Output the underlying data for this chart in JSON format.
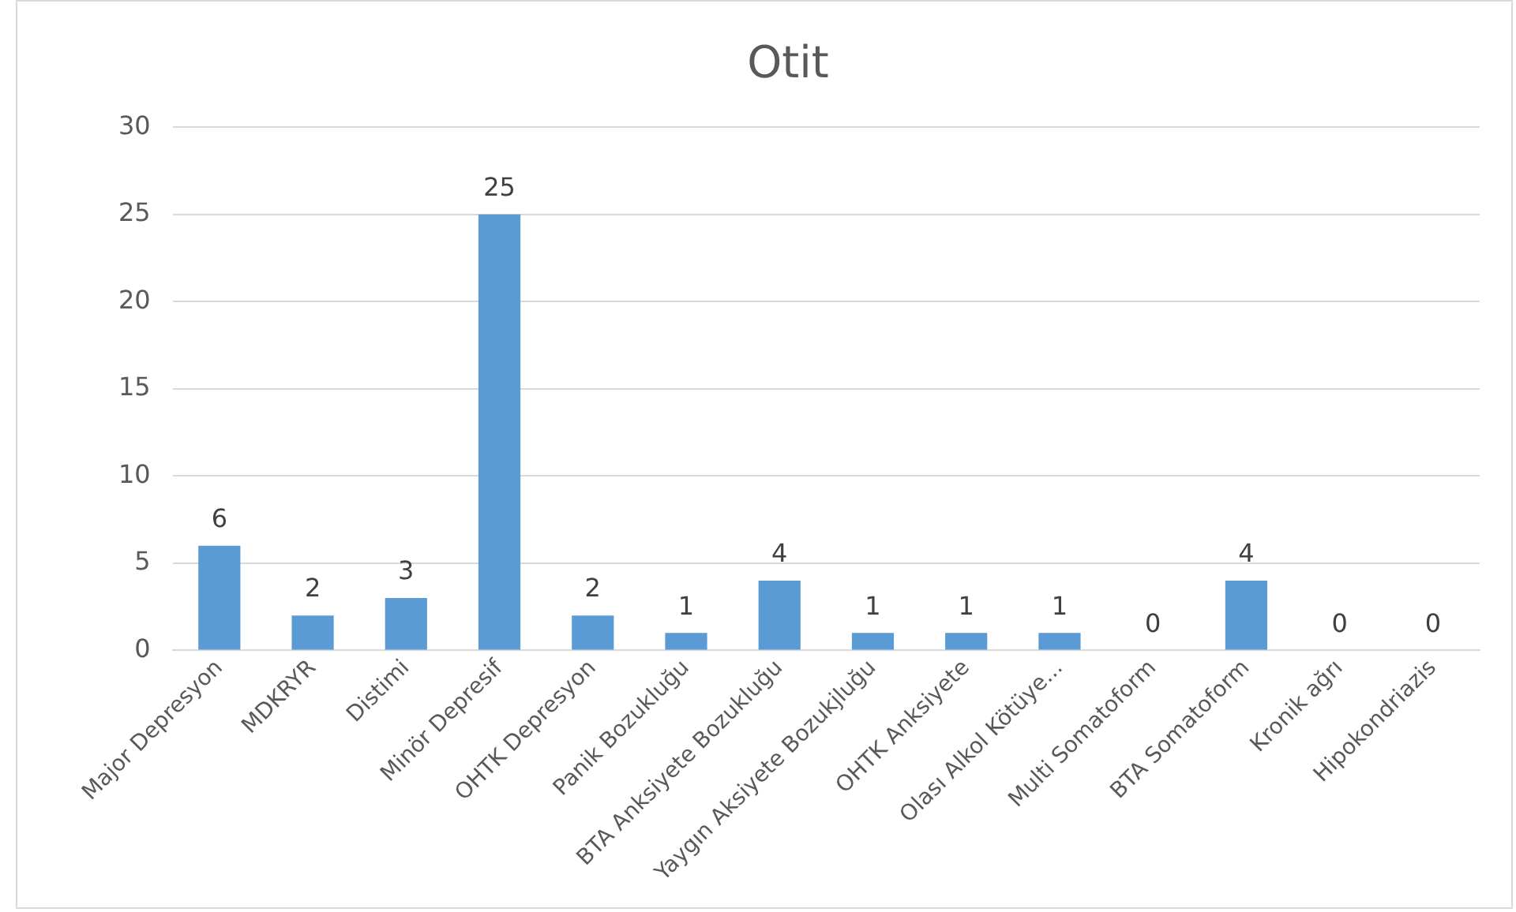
{
  "chart_data": {
    "type": "bar",
    "title": "Otit",
    "categories": [
      "Major Depresyon",
      "MDKRYR",
      "Distimi",
      "Minör Depresif",
      "OHTK Depresyon",
      "Panik Bozukluğu",
      "BTA Anksiyete Bozukluğu",
      "Yaygın Aksiyete Bozukjluğu",
      "OHTK Anksiyete",
      "Olası Alkol Kötüye...",
      "Multi Somatoform",
      "BTA Somatoform",
      "Kronik ağrı",
      "Hipokondriazis"
    ],
    "values": [
      6,
      2,
      3,
      25,
      2,
      1,
      4,
      1,
      1,
      1,
      0,
      4,
      0,
      0
    ],
    "color": "#5b9bd5",
    "ylim": [
      0,
      30
    ],
    "yticks": [
      0,
      5,
      10,
      15,
      20,
      25,
      30
    ],
    "grid": "y",
    "data_labels": true,
    "legend": false
  }
}
